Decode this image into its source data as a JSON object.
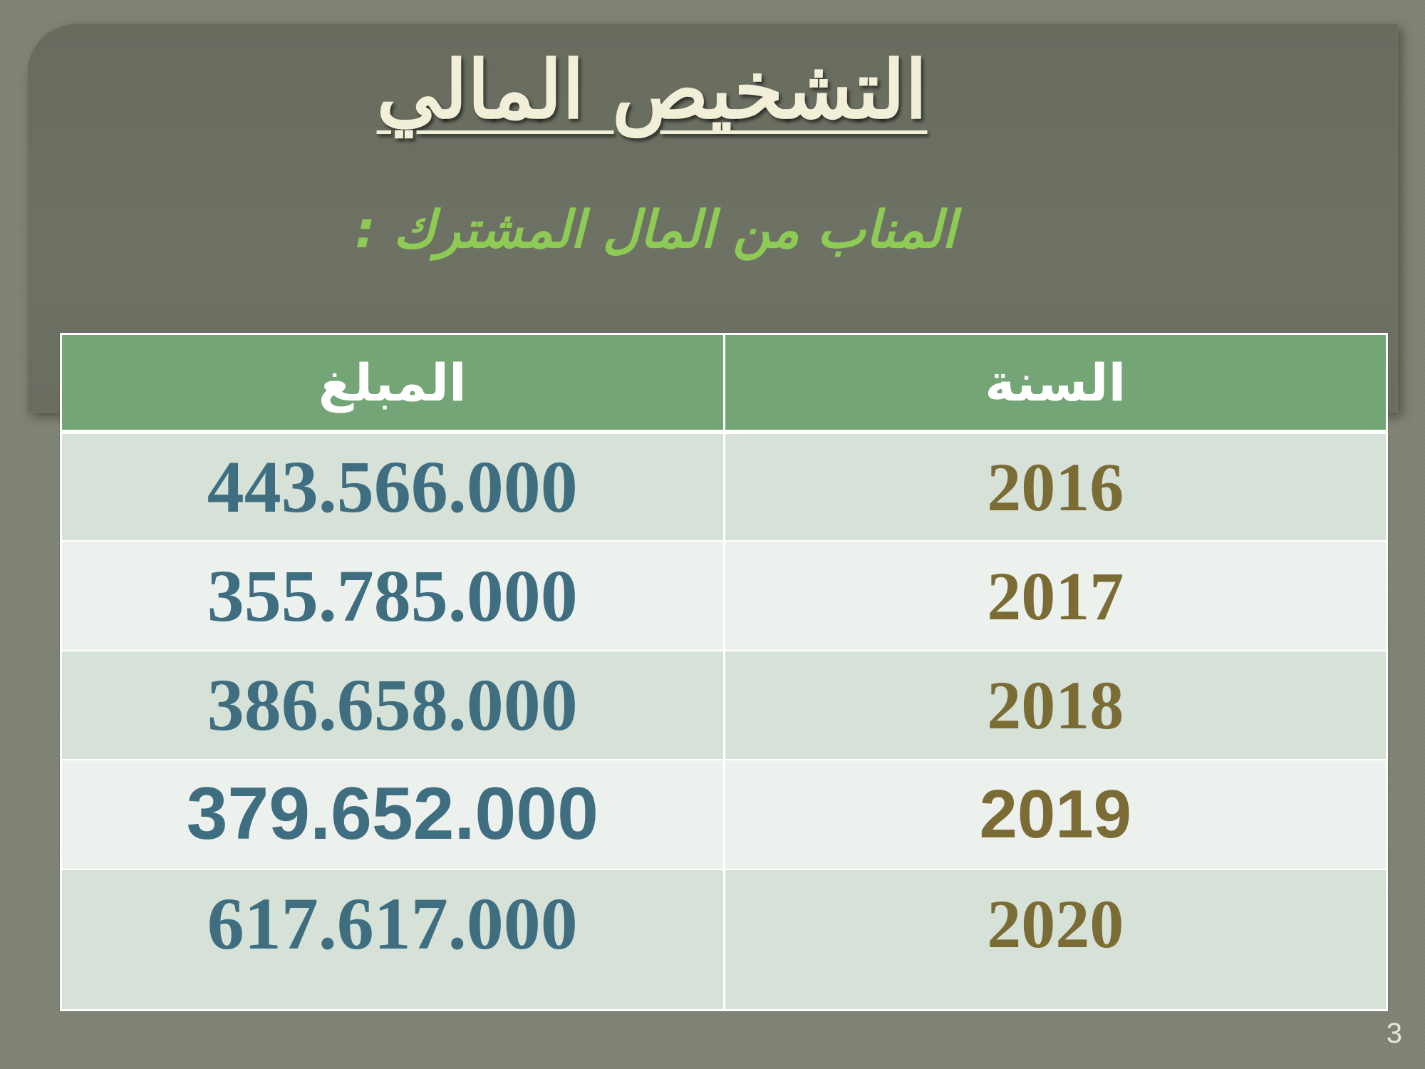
{
  "slide": {
    "title": "التشخيص المالي",
    "subtitle": "المناب من المال المشترك :",
    "page_number": "3"
  },
  "table": {
    "headers": {
      "amount": "المبلغ",
      "year": "السنة"
    },
    "rows": [
      {
        "year": "2016",
        "amount": "443.566.000"
      },
      {
        "year": "2017",
        "amount": "355.785.000"
      },
      {
        "year": "2018",
        "amount": "386.658.000"
      },
      {
        "year": "2019",
        "amount": "379.652.000"
      },
      {
        "year": "2020",
        "amount": "617.617.000"
      }
    ]
  },
  "colors": {
    "header_row": "#74a577",
    "amount_text": "#3e6e80",
    "year_text": "#7b6c35",
    "subtitle_text": "#8ecb55",
    "title_text": "#f2efd9"
  }
}
